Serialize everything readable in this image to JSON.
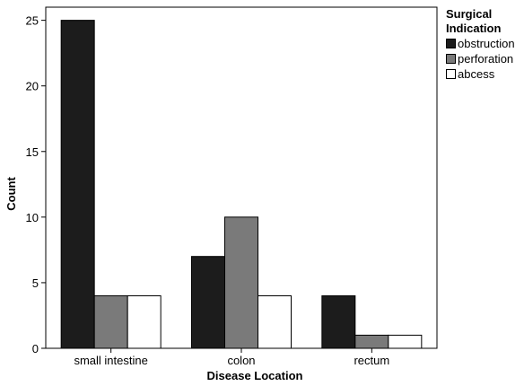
{
  "chart_data": {
    "type": "bar",
    "categories": [
      "small intestine",
      "colon",
      "rectum"
    ],
    "series": [
      {
        "name": "obstruction",
        "values": [
          25,
          7,
          4
        ],
        "color": "#1c1c1c"
      },
      {
        "name": "perforation",
        "values": [
          4,
          10,
          1
        ],
        "color": "#7a7a7a"
      },
      {
        "name": "abcess",
        "values": [
          4,
          4,
          1
        ],
        "color": "#ffffff"
      }
    ],
    "xlabel": "Disease Location",
    "ylabel": "Count",
    "yticks": [
      0,
      5,
      10,
      15,
      20,
      25
    ],
    "ylim": [
      0,
      26
    ],
    "grid": false,
    "legend": {
      "title_line1": "Surgical",
      "title_line2": "Indication",
      "placement": "top-right, outside plot"
    }
  }
}
